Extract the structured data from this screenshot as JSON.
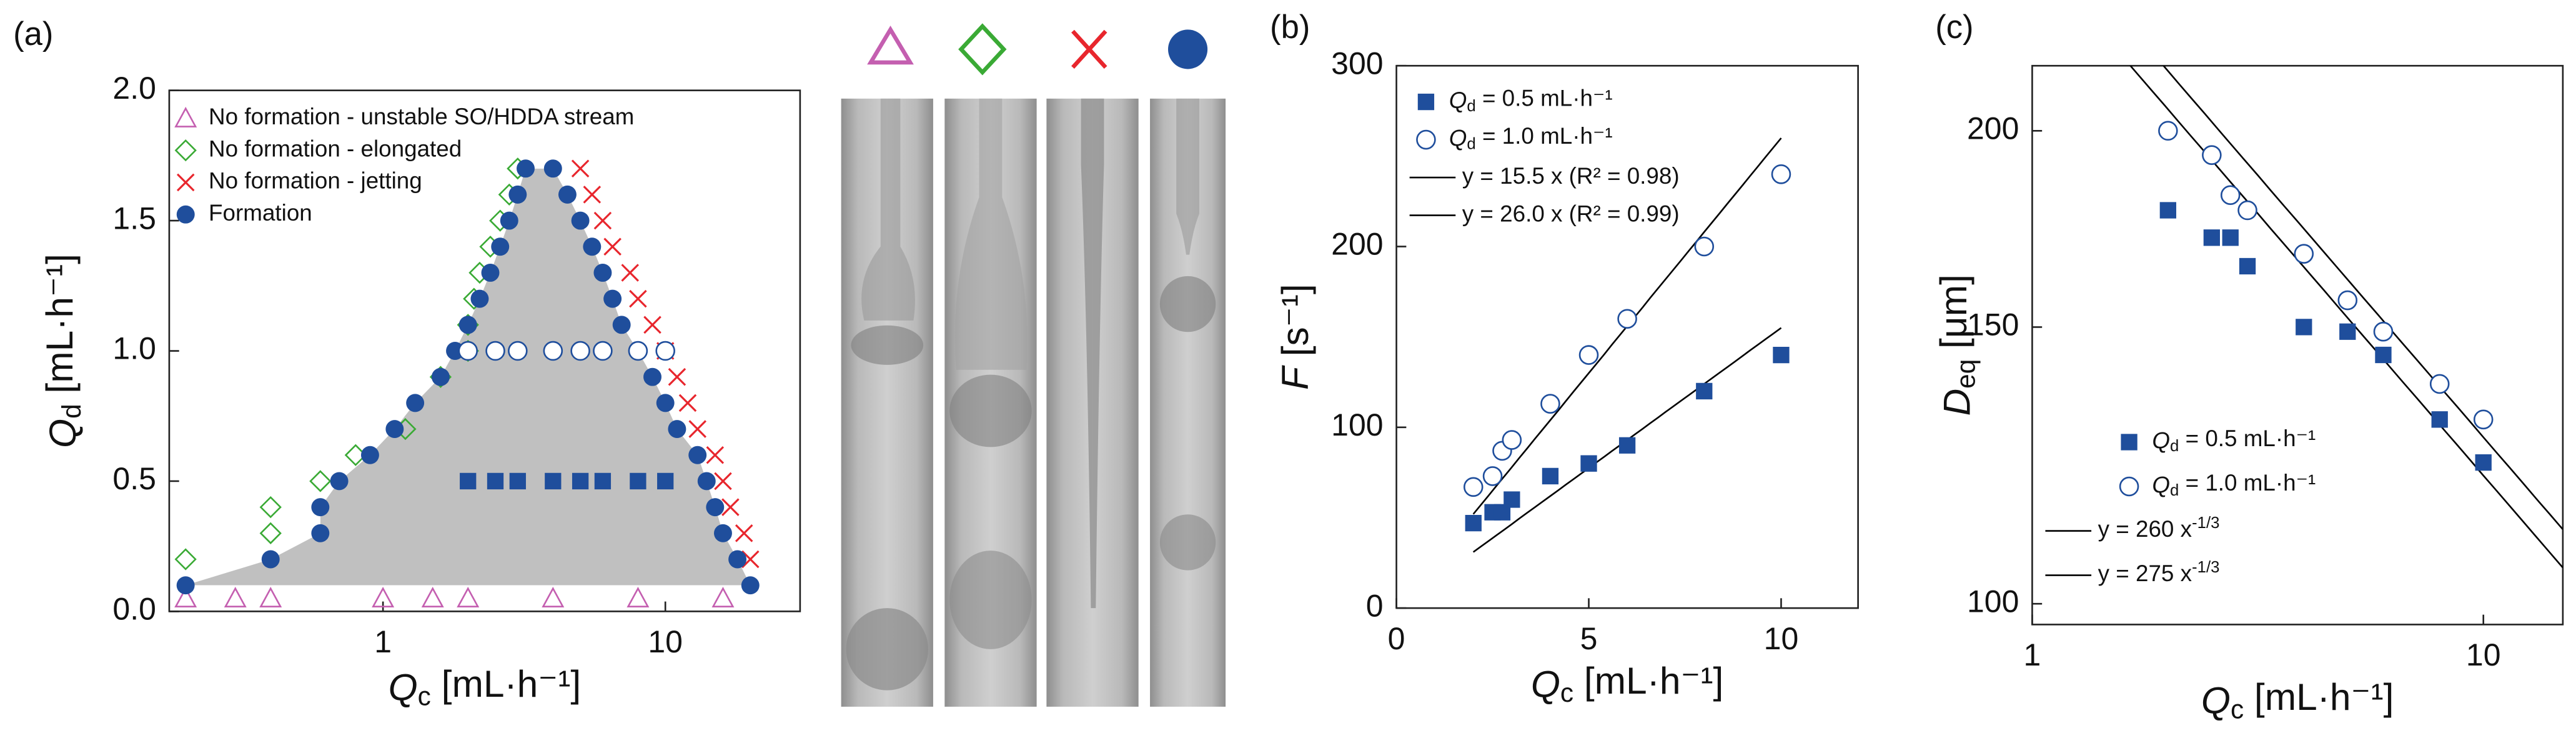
{
  "chart_data": [
    {
      "type": "scatter",
      "panel": "(a)",
      "xlabel": "Qc [mL·h⁻¹]",
      "ylabel": "Qd [mL·h⁻¹]",
      "xscale": "log",
      "xlim": [
        0.175,
        30
      ],
      "ylim": [
        0,
        2.0
      ],
      "xticks": [
        1,
        10
      ],
      "yticks": [
        {
          "value": 0,
          "label": "0.0"
        },
        0.5,
        {
          "value": 1,
          "label": "1.0"
        },
        1.5,
        {
          "value": 2,
          "label": "2.0"
        }
      ],
      "legend": "upper left",
      "region_color": "#c0c0c0",
      "series": [
        {
          "name": "No formation - unstable SO/HDDA stream",
          "marker": "triangle",
          "color": "#c45fb0",
          "x": [
            0.2,
            0.3,
            0.4,
            1,
            1.5,
            2,
            4,
            8,
            16
          ],
          "values": [
            0.05,
            0.05,
            0.05,
            0.05,
            0.05,
            0.05,
            0.05,
            0.05,
            0.05
          ]
        },
        {
          "name": "No formation - elongated",
          "marker": "diamond",
          "color": "#3aaa35",
          "x": [
            0.2,
            0.4,
            0.4,
            0.6,
            0.8,
            1.2,
            1.6,
            2,
            2,
            2.1,
            2.2,
            2.4,
            2.6,
            2.8,
            3
          ],
          "values": [
            0.2,
            0.3,
            0.4,
            0.5,
            0.6,
            0.7,
            0.9,
            1.0,
            1.1,
            1.2,
            1.3,
            1.4,
            1.5,
            1.6,
            1.7
          ]
        },
        {
          "name": "No formation - jetting",
          "marker": "cross",
          "color": "#e8262d",
          "x": [
            5,
            5.5,
            6,
            6.5,
            7.5,
            8,
            9,
            10,
            11,
            12,
            13,
            15,
            16,
            17,
            19,
            20
          ],
          "values": [
            1.7,
            1.6,
            1.5,
            1.4,
            1.3,
            1.2,
            1.1,
            1.0,
            0.9,
            0.8,
            0.7,
            0.6,
            0.5,
            0.4,
            0.3,
            0.2
          ]
        },
        {
          "name": "Formation",
          "marker": "circle",
          "color": "#1f4e9c",
          "region": true,
          "x": [
            0.2,
            0.4,
            0.6,
            0.6,
            0.7,
            0.9,
            1.1,
            1.3,
            1.6,
            1.8,
            2,
            2.2,
            2.4,
            2.6,
            2.8,
            3,
            3.2,
            4,
            4.5,
            5,
            5.5,
            6,
            6.5,
            7,
            8,
            9,
            10,
            11,
            13,
            14,
            15,
            16,
            18,
            20
          ],
          "values": [
            0.1,
            0.2,
            0.3,
            0.4,
            0.5,
            0.6,
            0.7,
            0.8,
            0.9,
            1.0,
            1.1,
            1.2,
            1.3,
            1.4,
            1.5,
            1.6,
            1.7,
            1.7,
            1.6,
            1.5,
            1.4,
            1.3,
            1.2,
            1.1,
            1.0,
            0.9,
            0.8,
            0.7,
            0.6,
            0.5,
            0.4,
            0.3,
            0.2,
            0.1
          ]
        },
        {
          "marker": "square",
          "color": "#1f4e9c",
          "x": [
            2,
            2.5,
            3,
            4,
            5,
            6,
            8,
            10
          ],
          "values": [
            0.5,
            0.5,
            0.5,
            0.5,
            0.5,
            0.5,
            0.5,
            0.5
          ]
        },
        {
          "marker": "circle-open",
          "color": "#1f4e9c",
          "x": [
            2,
            2.5,
            3,
            4,
            5,
            6,
            8,
            10
          ],
          "values": [
            1.0,
            1.0,
            1.0,
            1.0,
            1.0,
            1.0,
            1.0,
            1.0
          ]
        }
      ]
    },
    {
      "type": "scatter",
      "panel": "(b)",
      "xlabel": "Qc [mL·h⁻¹]",
      "ylabel": "F [s⁻¹]",
      "xlim": [
        0,
        12
      ],
      "ylim": [
        0,
        300
      ],
      "xticks": [
        0,
        5,
        10
      ],
      "yticks": [
        0,
        100,
        200,
        300
      ],
      "legend": "upper left",
      "series": [
        {
          "name": "Qd = 0.5 mL·h⁻¹",
          "marker": "square",
          "color": "#1f4e9c",
          "x": [
            2,
            2.5,
            2.75,
            3,
            4,
            5,
            6,
            8,
            10
          ],
          "values": [
            47,
            53,
            53,
            60,
            73,
            80,
            90,
            120,
            140
          ]
        },
        {
          "name": "Qd = 1.0 mL·h⁻¹",
          "marker": "circle-open",
          "color": "#1f4e9c",
          "x": [
            2,
            2.5,
            2.75,
            3,
            4,
            5,
            6,
            8,
            10
          ],
          "values": [
            67,
            73,
            87,
            93,
            113,
            140,
            160,
            200,
            240
          ]
        }
      ],
      "fits": [
        {
          "label": "y = 15.5 x (R² = 0.98)",
          "slope": 15.5,
          "x": [
            2,
            10
          ],
          "color": "#000000"
        },
        {
          "label": "y = 26.0 x (R² = 0.99)",
          "slope": 26.0,
          "x": [
            2,
            10
          ],
          "color": "#000000"
        }
      ]
    },
    {
      "type": "scatter",
      "panel": "(c)",
      "xlabel": "Qc [mL·h⁻¹]",
      "ylabel": "Deq [μm]",
      "xscale": "log",
      "yscale": "log",
      "xlim": [
        1,
        15
      ],
      "ylim": [
        97,
        220
      ],
      "xticks": [
        1,
        10
      ],
      "yticks": [
        100,
        150,
        200
      ],
      "legend": "lower left",
      "series": [
        {
          "name": "Qd = 0.5 mL·h⁻¹",
          "marker": "square",
          "color": "#1f4e9c",
          "x": [
            2,
            2.5,
            2.75,
            3,
            4,
            5,
            6,
            8,
            10
          ],
          "values": [
            178,
            171,
            171,
            164,
            150,
            149,
            144,
            131,
            123
          ]
        },
        {
          "name": "Qd = 1.0 mL·h⁻¹",
          "marker": "circle-open",
          "color": "#1f4e9c",
          "x": [
            2,
            2.5,
            2.75,
            3,
            4,
            5,
            6,
            8,
            10
          ],
          "values": [
            200,
            193,
            182,
            178,
            167,
            156,
            149,
            138,
            131
          ]
        }
      ],
      "fits": [
        {
          "label": "y = 260 x",
          "label_sup": "-1/3",
          "coef": 260,
          "exponent": -0.3333,
          "color": "#000000"
        },
        {
          "label": "y = 275 x",
          "label_sup": "-1/3",
          "coef": 275,
          "exponent": -0.3333,
          "color": "#000000"
        }
      ]
    }
  ]
}
